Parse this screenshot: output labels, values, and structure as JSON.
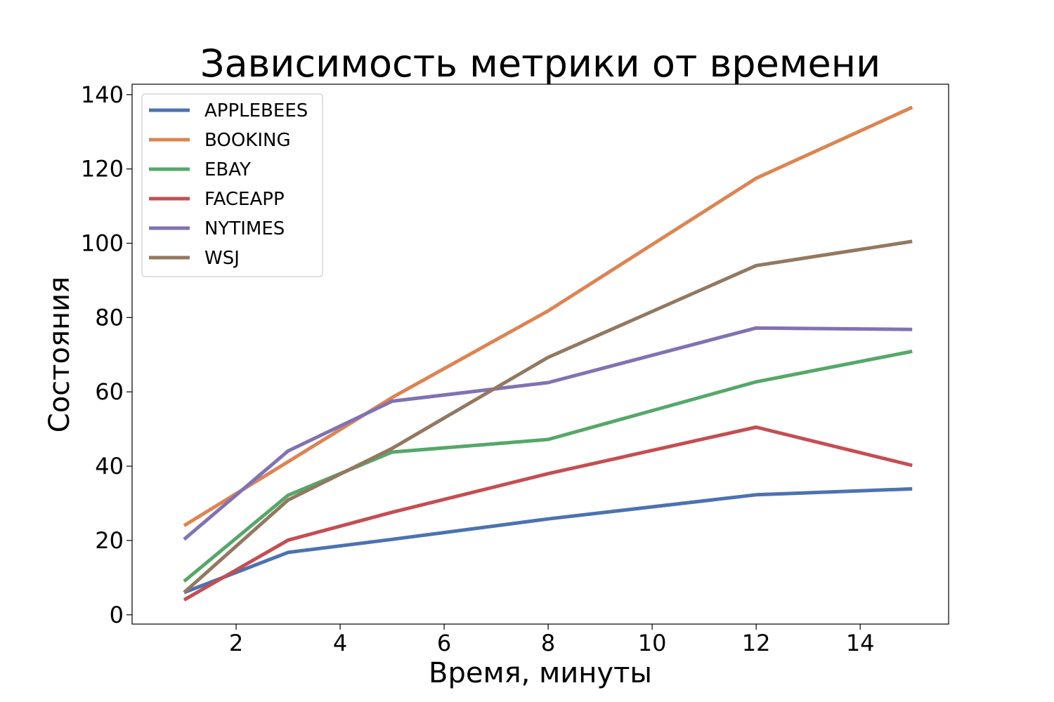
{
  "chart_data": {
    "type": "line",
    "title": "Зависимость метрики от времени",
    "xlabel": "Время, минуты",
    "ylabel": "Состояния",
    "x": [
      1,
      3,
      5,
      8,
      12,
      15
    ],
    "xlim": [
      0.0,
      15.7
    ],
    "ylim": [
      -2.5,
      142.8
    ],
    "xticks": [
      2,
      4,
      6,
      8,
      10,
      12,
      14
    ],
    "yticks": [
      0,
      20,
      40,
      60,
      80,
      100,
      120,
      140
    ],
    "grid": false,
    "legend_position": "top-left",
    "series": [
      {
        "name": "APPLEBEES",
        "color": "#4c72b0",
        "values": [
          6,
          16.8,
          20.3,
          25.8,
          32.3,
          33.9
        ]
      },
      {
        "name": "BOOKING",
        "color": "#dd8452",
        "values": [
          24,
          41.2,
          58.5,
          81.8,
          117.5,
          136.6
        ]
      },
      {
        "name": "EBAY",
        "color": "#55a868",
        "values": [
          9,
          32.2,
          43.8,
          47.2,
          62.7,
          70.9
        ]
      },
      {
        "name": "FACEAPP",
        "color": "#c44e52",
        "values": [
          4,
          20.1,
          27.6,
          38,
          50.5,
          40.2
        ]
      },
      {
        "name": "NYTIMES",
        "color": "#8172b3",
        "values": [
          20.3,
          44.1,
          57.5,
          62.5,
          77.2,
          76.8
        ]
      },
      {
        "name": "WSJ",
        "color": "#937860",
        "values": [
          6,
          30.9,
          44.8,
          69.3,
          94,
          100.5
        ]
      }
    ]
  }
}
